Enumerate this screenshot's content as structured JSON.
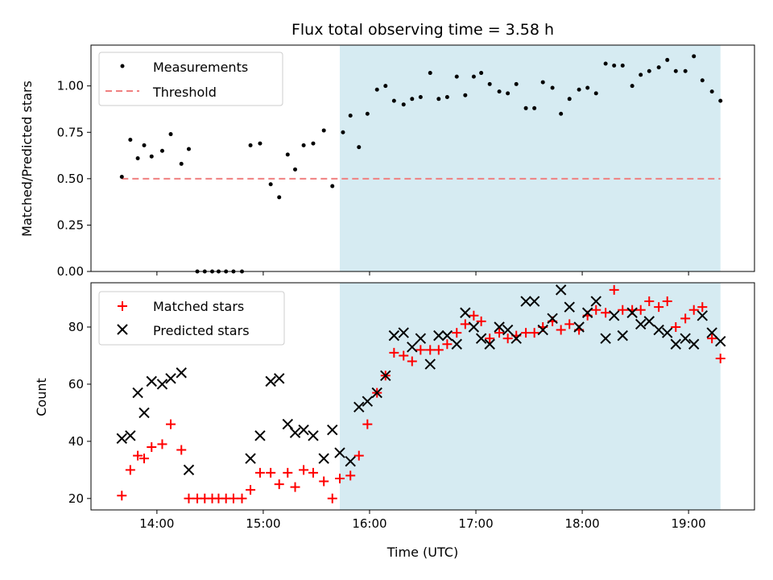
{
  "chart_data": {
    "title": "Flux total observing time = 3.58 h",
    "xlabel": "Time (UTC)",
    "x_ticks": [
      "14:00",
      "15:00",
      "16:00",
      "17:00",
      "18:00",
      "19:00"
    ],
    "x_tick_hours": [
      14,
      15,
      16,
      17,
      18,
      19
    ],
    "xlim_hours": [
      13.38,
      19.62
    ],
    "shaded_span_hours": [
      15.72,
      19.3
    ],
    "shade_color": "#add8e6",
    "subplots": [
      {
        "type": "scatter",
        "ylabel": "Matched/Predicted stars",
        "ylim": [
          0,
          1.22
        ],
        "y_ticks": [
          "0.00",
          "0.25",
          "0.50",
          "0.75",
          "1.00"
        ],
        "y_tick_values": [
          0,
          0.25,
          0.5,
          0.75,
          1.0
        ],
        "legend_position": "top-left",
        "threshold": {
          "name": "Threshold",
          "value": 0.5,
          "x_range": [
            13.67,
            19.3
          ],
          "color": "#f08080"
        },
        "series": [
          {
            "name": "Measurements",
            "color": "#000000",
            "marker": "dot",
            "points": [
              [
                13.67,
                0.51
              ],
              [
                13.75,
                0.71
              ],
              [
                13.82,
                0.61
              ],
              [
                13.88,
                0.68
              ],
              [
                13.95,
                0.62
              ],
              [
                14.05,
                0.65
              ],
              [
                14.13,
                0.74
              ],
              [
                14.23,
                0.58
              ],
              [
                14.3,
                0.66
              ],
              [
                14.38,
                0.0
              ],
              [
                14.45,
                0.0
              ],
              [
                14.52,
                0.0
              ],
              [
                14.58,
                0.0
              ],
              [
                14.65,
                0.0
              ],
              [
                14.72,
                0.0
              ],
              [
                14.8,
                0.0
              ],
              [
                14.88,
                0.68
              ],
              [
                14.97,
                0.69
              ],
              [
                15.07,
                0.47
              ],
              [
                15.15,
                0.4
              ],
              [
                15.23,
                0.63
              ],
              [
                15.3,
                0.55
              ],
              [
                15.38,
                0.68
              ],
              [
                15.47,
                0.69
              ],
              [
                15.57,
                0.76
              ],
              [
                15.65,
                0.46
              ],
              [
                15.75,
                0.75
              ],
              [
                15.82,
                0.84
              ],
              [
                15.9,
                0.67
              ],
              [
                15.98,
                0.85
              ],
              [
                16.07,
                0.98
              ],
              [
                16.15,
                1.0
              ],
              [
                16.23,
                0.92
              ],
              [
                16.32,
                0.9
              ],
              [
                16.4,
                0.93
              ],
              [
                16.48,
                0.94
              ],
              [
                16.57,
                1.07
              ],
              [
                16.65,
                0.93
              ],
              [
                16.73,
                0.94
              ],
              [
                16.82,
                1.05
              ],
              [
                16.9,
                0.95
              ],
              [
                16.98,
                1.05
              ],
              [
                17.05,
                1.07
              ],
              [
                17.13,
                1.01
              ],
              [
                17.22,
                0.97
              ],
              [
                17.3,
                0.96
              ],
              [
                17.38,
                1.01
              ],
              [
                17.47,
                0.88
              ],
              [
                17.55,
                0.88
              ],
              [
                17.63,
                1.02
              ],
              [
                17.72,
                0.99
              ],
              [
                17.8,
                0.85
              ],
              [
                17.88,
                0.93
              ],
              [
                17.97,
                0.98
              ],
              [
                18.05,
                0.99
              ],
              [
                18.13,
                0.96
              ],
              [
                18.22,
                1.12
              ],
              [
                18.3,
                1.11
              ],
              [
                18.38,
                1.11
              ],
              [
                18.47,
                1.0
              ],
              [
                18.55,
                1.06
              ],
              [
                18.63,
                1.08
              ],
              [
                18.72,
                1.1
              ],
              [
                18.8,
                1.14
              ],
              [
                18.88,
                1.08
              ],
              [
                18.97,
                1.08
              ],
              [
                19.05,
                1.16
              ],
              [
                19.13,
                1.03
              ],
              [
                19.22,
                0.97
              ],
              [
                19.3,
                0.92
              ]
            ]
          }
        ]
      },
      {
        "type": "scatter",
        "ylabel": "Count",
        "ylim": [
          16,
          95.5
        ],
        "y_ticks": [
          "20",
          "40",
          "60",
          "80"
        ],
        "y_tick_values": [
          20,
          40,
          60,
          80
        ],
        "legend_position": "top-left",
        "series": [
          {
            "name": "Matched stars",
            "color": "#ff0000",
            "marker": "plus",
            "points": [
              [
                13.67,
                21
              ],
              [
                13.75,
                30
              ],
              [
                13.82,
                35
              ],
              [
                13.88,
                34
              ],
              [
                13.95,
                38
              ],
              [
                14.05,
                39
              ],
              [
                14.13,
                46
              ],
              [
                14.23,
                37
              ],
              [
                14.3,
                20
              ],
              [
                14.38,
                20
              ],
              [
                14.45,
                20
              ],
              [
                14.52,
                20
              ],
              [
                14.58,
                20
              ],
              [
                14.65,
                20
              ],
              [
                14.72,
                20
              ],
              [
                14.8,
                20
              ],
              [
                14.88,
                23
              ],
              [
                14.97,
                29
              ],
              [
                15.07,
                29
              ],
              [
                15.15,
                25
              ],
              [
                15.23,
                29
              ],
              [
                15.3,
                24
              ],
              [
                15.38,
                30
              ],
              [
                15.47,
                29
              ],
              [
                15.57,
                26
              ],
              [
                15.65,
                20
              ],
              [
                15.72,
                27
              ],
              [
                15.82,
                28
              ],
              [
                15.9,
                35
              ],
              [
                15.98,
                46
              ],
              [
                16.07,
                57
              ],
              [
                16.15,
                63
              ],
              [
                16.23,
                71
              ],
              [
                16.32,
                70
              ],
              [
                16.4,
                68
              ],
              [
                16.48,
                72
              ],
              [
                16.57,
                72
              ],
              [
                16.65,
                72
              ],
              [
                16.73,
                74
              ],
              [
                16.82,
                78
              ],
              [
                16.9,
                81
              ],
              [
                16.98,
                84
              ],
              [
                17.05,
                82
              ],
              [
                17.13,
                76
              ],
              [
                17.22,
                78
              ],
              [
                17.3,
                76
              ],
              [
                17.38,
                77
              ],
              [
                17.47,
                78
              ],
              [
                17.55,
                78
              ],
              [
                17.63,
                80
              ],
              [
                17.72,
                82
              ],
              [
                17.8,
                79
              ],
              [
                17.88,
                81
              ],
              [
                17.97,
                79
              ],
              [
                18.05,
                84
              ],
              [
                18.13,
                86
              ],
              [
                18.22,
                85
              ],
              [
                18.3,
                93
              ],
              [
                18.38,
                86
              ],
              [
                18.47,
                86
              ],
              [
                18.55,
                86
              ],
              [
                18.63,
                89
              ],
              [
                18.72,
                87
              ],
              [
                18.8,
                89
              ],
              [
                18.88,
                80
              ],
              [
                18.97,
                83
              ],
              [
                19.05,
                86
              ],
              [
                19.13,
                87
              ],
              [
                19.22,
                76
              ],
              [
                19.3,
                69
              ]
            ]
          },
          {
            "name": "Predicted stars",
            "color": "#000000",
            "marker": "x",
            "points": [
              [
                13.67,
                41
              ],
              [
                13.75,
                42
              ],
              [
                13.82,
                57
              ],
              [
                13.88,
                50
              ],
              [
                13.95,
                61
              ],
              [
                14.05,
                60
              ],
              [
                14.13,
                62
              ],
              [
                14.23,
                64
              ],
              [
                14.3,
                30
              ],
              [
                14.88,
                34
              ],
              [
                14.97,
                42
              ],
              [
                15.07,
                61
              ],
              [
                15.15,
                62
              ],
              [
                15.23,
                46
              ],
              [
                15.3,
                43
              ],
              [
                15.38,
                44
              ],
              [
                15.47,
                42
              ],
              [
                15.57,
                34
              ],
              [
                15.65,
                44
              ],
              [
                15.72,
                36
              ],
              [
                15.82,
                33
              ],
              [
                15.9,
                52
              ],
              [
                15.98,
                54
              ],
              [
                16.07,
                57
              ],
              [
                16.15,
                63
              ],
              [
                16.23,
                77
              ],
              [
                16.32,
                78
              ],
              [
                16.4,
                73
              ],
              [
                16.48,
                76
              ],
              [
                16.57,
                67
              ],
              [
                16.65,
                77
              ],
              [
                16.73,
                77
              ],
              [
                16.82,
                74
              ],
              [
                16.9,
                85
              ],
              [
                16.98,
                80
              ],
              [
                17.05,
                76
              ],
              [
                17.13,
                74
              ],
              [
                17.22,
                80
              ],
              [
                17.3,
                79
              ],
              [
                17.38,
                76
              ],
              [
                17.47,
                89
              ],
              [
                17.55,
                89
              ],
              [
                17.63,
                79
              ],
              [
                17.72,
                83
              ],
              [
                17.8,
                93
              ],
              [
                17.88,
                87
              ],
              [
                17.97,
                80
              ],
              [
                18.05,
                85
              ],
              [
                18.13,
                89
              ],
              [
                18.22,
                76
              ],
              [
                18.3,
                84
              ],
              [
                18.38,
                77
              ],
              [
                18.47,
                85
              ],
              [
                18.55,
                81
              ],
              [
                18.63,
                82
              ],
              [
                18.72,
                79
              ],
              [
                18.8,
                78
              ],
              [
                18.88,
                74
              ],
              [
                18.97,
                76
              ],
              [
                19.05,
                74
              ],
              [
                19.13,
                84
              ],
              [
                19.22,
                78
              ],
              [
                19.3,
                75
              ]
            ]
          }
        ]
      }
    ]
  }
}
